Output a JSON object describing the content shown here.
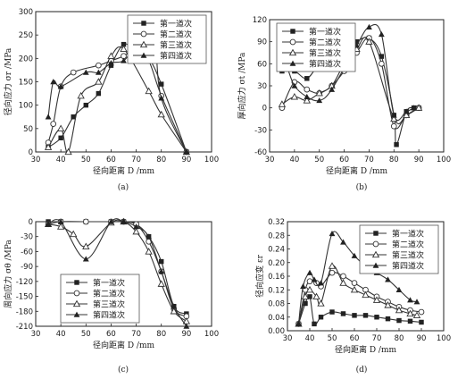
{
  "chart_data": [
    {
      "id": "a",
      "type": "line",
      "panel_label": "(a)",
      "xlabel": "径向距离  D /mm",
      "ylabel": "径向应力 σr /MPa",
      "xlim": [
        30,
        100
      ],
      "ylim": [
        0,
        300
      ],
      "xticks": [
        30,
        40,
        50,
        60,
        70,
        80,
        90,
        100
      ],
      "yticks": [
        0,
        50,
        100,
        150,
        200,
        250,
        300
      ],
      "tick_labels_y": [
        "0",
        "50",
        "100",
        "150",
        "200",
        "250",
        "300"
      ],
      "legend_position": "top-right",
      "series": [
        {
          "name": "第一道次",
          "marker": "square-filled",
          "x": [
            35,
            40,
            45,
            50,
            55,
            60,
            65,
            70,
            75,
            80,
            90
          ],
          "y": [
            10,
            30,
            75,
            100,
            125,
            185,
            230,
            215,
            200,
            145,
            0
          ]
        },
        {
          "name": "第二道次",
          "marker": "circle-open",
          "x": [
            35,
            37,
            40,
            45,
            55,
            60,
            65,
            70,
            75,
            80,
            90
          ],
          "y": [
            20,
            60,
            140,
            170,
            185,
            195,
            205,
            220,
            195,
            120,
            0
          ]
        },
        {
          "name": "第三道次",
          "marker": "triangle-open",
          "x": [
            35,
            40,
            43,
            48,
            55,
            60,
            65,
            75,
            80,
            90
          ],
          "y": [
            10,
            50,
            0,
            120,
            150,
            205,
            220,
            130,
            80,
            0
          ]
        },
        {
          "name": "第四道次",
          "marker": "triangle-filled",
          "x": [
            35,
            37,
            40,
            50,
            55,
            60,
            65,
            70,
            77,
            80,
            90
          ],
          "y": [
            75,
            150,
            140,
            170,
            170,
            190,
            195,
            225,
            240,
            115,
            0
          ]
        }
      ]
    },
    {
      "id": "b",
      "type": "line",
      "panel_label": "(b)",
      "xlabel": "径向距离  D /mm",
      "ylabel": "厚向应力 σt /MPa",
      "xlim": [
        30,
        100
      ],
      "ylim": [
        -60,
        120
      ],
      "xticks": [
        30,
        40,
        50,
        60,
        70,
        80,
        90,
        100
      ],
      "yticks": [
        -60,
        -30,
        0,
        30,
        60,
        90,
        120
      ],
      "tick_labels_y": [
        "-60",
        "-30",
        "0",
        "30",
        "60",
        "90",
        "120"
      ],
      "legend_position": "top-left",
      "series": [
        {
          "name": "第一道次",
          "marker": "square-filled",
          "x": [
            35,
            40,
            45,
            50,
            55,
            60,
            65,
            70,
            75,
            80,
            81,
            85,
            88,
            90
          ],
          "y": [
            50,
            50,
            40,
            60,
            70,
            75,
            90,
            95,
            70,
            -10,
            -50,
            -5,
            0,
            0
          ]
        },
        {
          "name": "第二道次",
          "marker": "circle-open",
          "x": [
            35,
            40,
            45,
            50,
            55,
            60,
            65,
            70,
            75,
            80,
            85,
            90
          ],
          "y": [
            0,
            35,
            25,
            20,
            30,
            50,
            75,
            95,
            60,
            -25,
            -10,
            0
          ]
        },
        {
          "name": "第三道次",
          "marker": "triangle-open",
          "x": [
            35,
            40,
            45,
            50,
            55,
            60,
            65,
            70,
            80,
            85,
            90
          ],
          "y": [
            5,
            15,
            10,
            20,
            30,
            60,
            80,
            90,
            -15,
            -10,
            0
          ]
        },
        {
          "name": "第四道次",
          "marker": "triangle-filled",
          "x": [
            35,
            37,
            40,
            45,
            50,
            55,
            65,
            70,
            75,
            80,
            85,
            88
          ],
          "y": [
            60,
            55,
            30,
            15,
            10,
            25,
            85,
            110,
            100,
            -10,
            -5,
            0
          ]
        }
      ]
    },
    {
      "id": "c",
      "type": "line",
      "panel_label": "(c)",
      "xlabel": "径向距离  D /mm",
      "ylabel": "周向应力 σθ /MPa",
      "xlim": [
        30,
        100
      ],
      "ylim": [
        -210,
        0
      ],
      "xticks": [
        30,
        40,
        50,
        60,
        70,
        80,
        90,
        100
      ],
      "yticks": [
        0,
        -30,
        -60,
        -90,
        -120,
        -150,
        -180,
        -210
      ],
      "tick_labels_y": [
        "0",
        "-30",
        "-60",
        "-90",
        "-120",
        "-150",
        "-180",
        "-210"
      ],
      "legend_position": "bottom-left",
      "series": [
        {
          "name": "第一道次",
          "marker": "square-filled",
          "x": [
            35,
            40,
            50,
            60,
            65,
            70,
            75,
            80,
            85,
            90
          ],
          "y": [
            0,
            0,
            0,
            0,
            0,
            -5,
            -30,
            -80,
            -170,
            -185
          ]
        },
        {
          "name": "第二道次",
          "marker": "circle-open",
          "x": [
            35,
            40,
            50,
            60,
            65,
            70,
            75,
            80,
            85,
            90
          ],
          "y": [
            -5,
            0,
            0,
            0,
            0,
            -5,
            -40,
            -100,
            -175,
            -190
          ]
        },
        {
          "name": "第三道次",
          "marker": "triangle-open",
          "x": [
            35,
            40,
            45,
            50,
            60,
            65,
            70,
            75,
            80,
            85,
            90
          ],
          "y": [
            -5,
            -10,
            -25,
            -50,
            -2,
            0,
            -20,
            -60,
            -125,
            -180,
            -200
          ]
        },
        {
          "name": "第四道次",
          "marker": "triangle-filled",
          "x": [
            35,
            40,
            50,
            60,
            65,
            70,
            75,
            80,
            85,
            90
          ],
          "y": [
            -5,
            0,
            -75,
            0,
            0,
            -10,
            -30,
            -100,
            -170,
            -210
          ]
        }
      ]
    },
    {
      "id": "d",
      "type": "line",
      "panel_label": "(d)",
      "xlabel": "径向距离  D /mm",
      "ylabel": "径向应变  εr",
      "xlim": [
        30,
        100
      ],
      "ylim": [
        0.0,
        0.32
      ],
      "xticks": [
        30,
        40,
        50,
        60,
        70,
        80,
        90,
        100
      ],
      "yticks": [
        0.0,
        0.04,
        0.08,
        0.12,
        0.16,
        0.2,
        0.24,
        0.28,
        0.32
      ],
      "tick_labels_y": [
        "0.00",
        "0.04",
        "0.08",
        "0.12",
        "0.16",
        "0.20",
        "0.24",
        "0.28",
        "0.32"
      ],
      "legend_position": "top-right",
      "series": [
        {
          "name": "第一道次",
          "marker": "square-filled",
          "x": [
            35,
            38,
            40,
            42,
            45,
            50,
            55,
            60,
            65,
            70,
            75,
            80,
            85,
            90
          ],
          "y": [
            0.02,
            0.08,
            0.1,
            0.02,
            0.04,
            0.055,
            0.05,
            0.045,
            0.045,
            0.04,
            0.035,
            0.03,
            0.028,
            0.025
          ]
        },
        {
          "name": "第二道次",
          "marker": "circle-open",
          "x": [
            35,
            38,
            40,
            43,
            45,
            50,
            55,
            60,
            65,
            70,
            75,
            80,
            85,
            90
          ],
          "y": [
            0.02,
            0.12,
            0.145,
            0.14,
            0.13,
            0.17,
            0.16,
            0.14,
            0.12,
            0.1,
            0.085,
            0.07,
            0.06,
            0.055
          ]
        },
        {
          "name": "第三道次",
          "marker": "triangle-open",
          "x": [
            35,
            38,
            40,
            43,
            45,
            50,
            55,
            60,
            65,
            70,
            75,
            80,
            85,
            88
          ],
          "y": [
            0.02,
            0.1,
            0.12,
            0.1,
            0.08,
            0.19,
            0.14,
            0.12,
            0.105,
            0.09,
            0.075,
            0.06,
            0.05,
            0.045
          ]
        },
        {
          "name": "第四道次",
          "marker": "triangle-filled",
          "x": [
            35,
            37,
            40,
            42,
            45,
            50,
            55,
            60,
            65,
            70,
            75,
            80,
            85,
            88
          ],
          "y": [
            0.02,
            0.13,
            0.17,
            0.15,
            0.14,
            0.285,
            0.26,
            0.22,
            0.19,
            0.17,
            0.15,
            0.12,
            0.09,
            0.085
          ]
        }
      ]
    }
  ]
}
